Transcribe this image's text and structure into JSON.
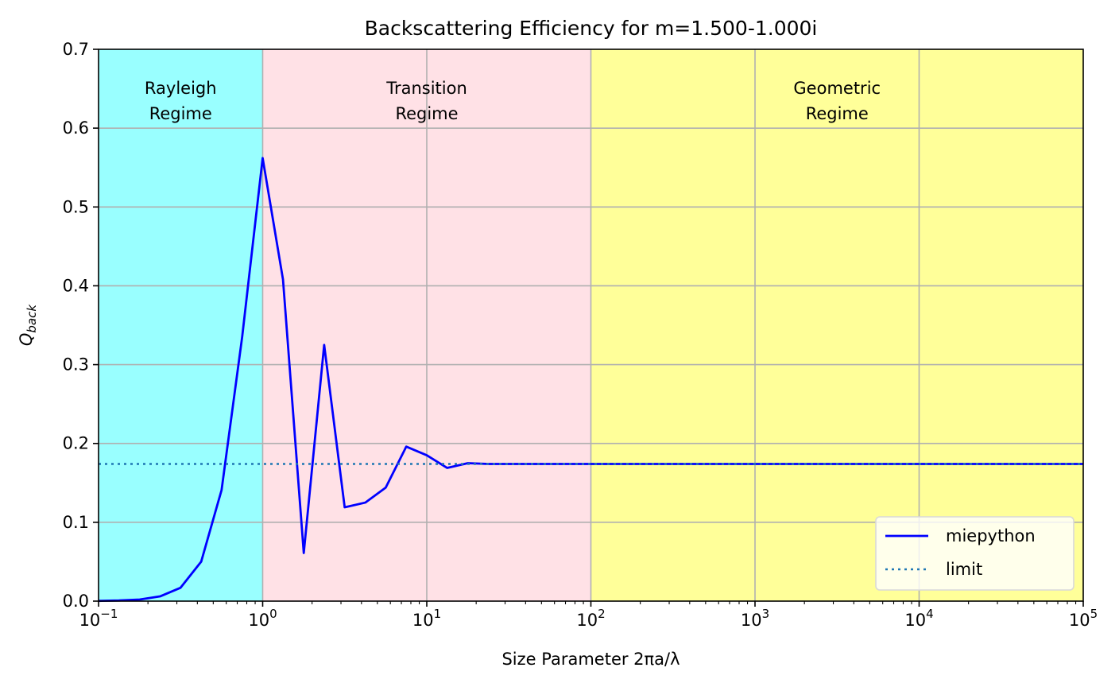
{
  "chart_data": {
    "type": "line",
    "title": "Backscattering Efficiency for m=1.500-1.000i",
    "xlabel": "Size Parameter 2πa/λ",
    "ylabel": {
      "main": "Q",
      "sub": "back"
    },
    "x_scale": "log",
    "xlim": [
      0.1,
      100000
    ],
    "ylim": [
      0,
      0.7
    ],
    "grid": true,
    "legend_position": "lower-right",
    "x_ticks": [
      {
        "base": "10",
        "exp": "−1",
        "value": 0.1
      },
      {
        "base": "10",
        "exp": "0",
        "value": 1
      },
      {
        "base": "10",
        "exp": "1",
        "value": 10
      },
      {
        "base": "10",
        "exp": "2",
        "value": 100
      },
      {
        "base": "10",
        "exp": "3",
        "value": 1000
      },
      {
        "base": "10",
        "exp": "4",
        "value": 10000
      },
      {
        "base": "10",
        "exp": "5",
        "value": 100000
      }
    ],
    "y_ticks": [
      "0.0",
      "0.1",
      "0.2",
      "0.3",
      "0.4",
      "0.5",
      "0.6",
      "0.7"
    ],
    "regions": [
      {
        "label": [
          "Rayleigh",
          "Regime"
        ],
        "x_range": [
          0.1,
          1
        ],
        "color": "#99ffff"
      },
      {
        "label": [
          "Transition",
          "Regime"
        ],
        "x_range": [
          1,
          100
        ],
        "color": "#ffe1e6"
      },
      {
        "label": [
          "Geometric",
          "Regime"
        ],
        "x_range": [
          100,
          100000
        ],
        "color": "#ffff99"
      }
    ],
    "series": [
      {
        "name": "miepython",
        "style": "solid",
        "color": "#0000ff",
        "x": [
          0.1,
          0.133,
          0.178,
          0.237,
          0.316,
          0.422,
          0.562,
          0.75,
          1.0,
          1.33,
          1.78,
          2.37,
          3.16,
          4.22,
          5.62,
          7.5,
          10,
          13.3,
          17.8,
          23.7,
          31.6,
          100,
          1000,
          10000,
          100000
        ],
        "y": [
          0.0003,
          0.0008,
          0.002,
          0.006,
          0.017,
          0.05,
          0.141,
          0.335,
          0.562,
          0.408,
          0.061,
          0.325,
          0.119,
          0.125,
          0.144,
          0.196,
          0.185,
          0.169,
          0.175,
          0.174,
          0.174,
          0.174,
          0.174,
          0.174,
          0.174
        ]
      },
      {
        "name": "limit",
        "style": "dotted",
        "color": "#1f77b4",
        "x": [
          0.1,
          100000
        ],
        "y": [
          0.174,
          0.174
        ]
      }
    ]
  }
}
